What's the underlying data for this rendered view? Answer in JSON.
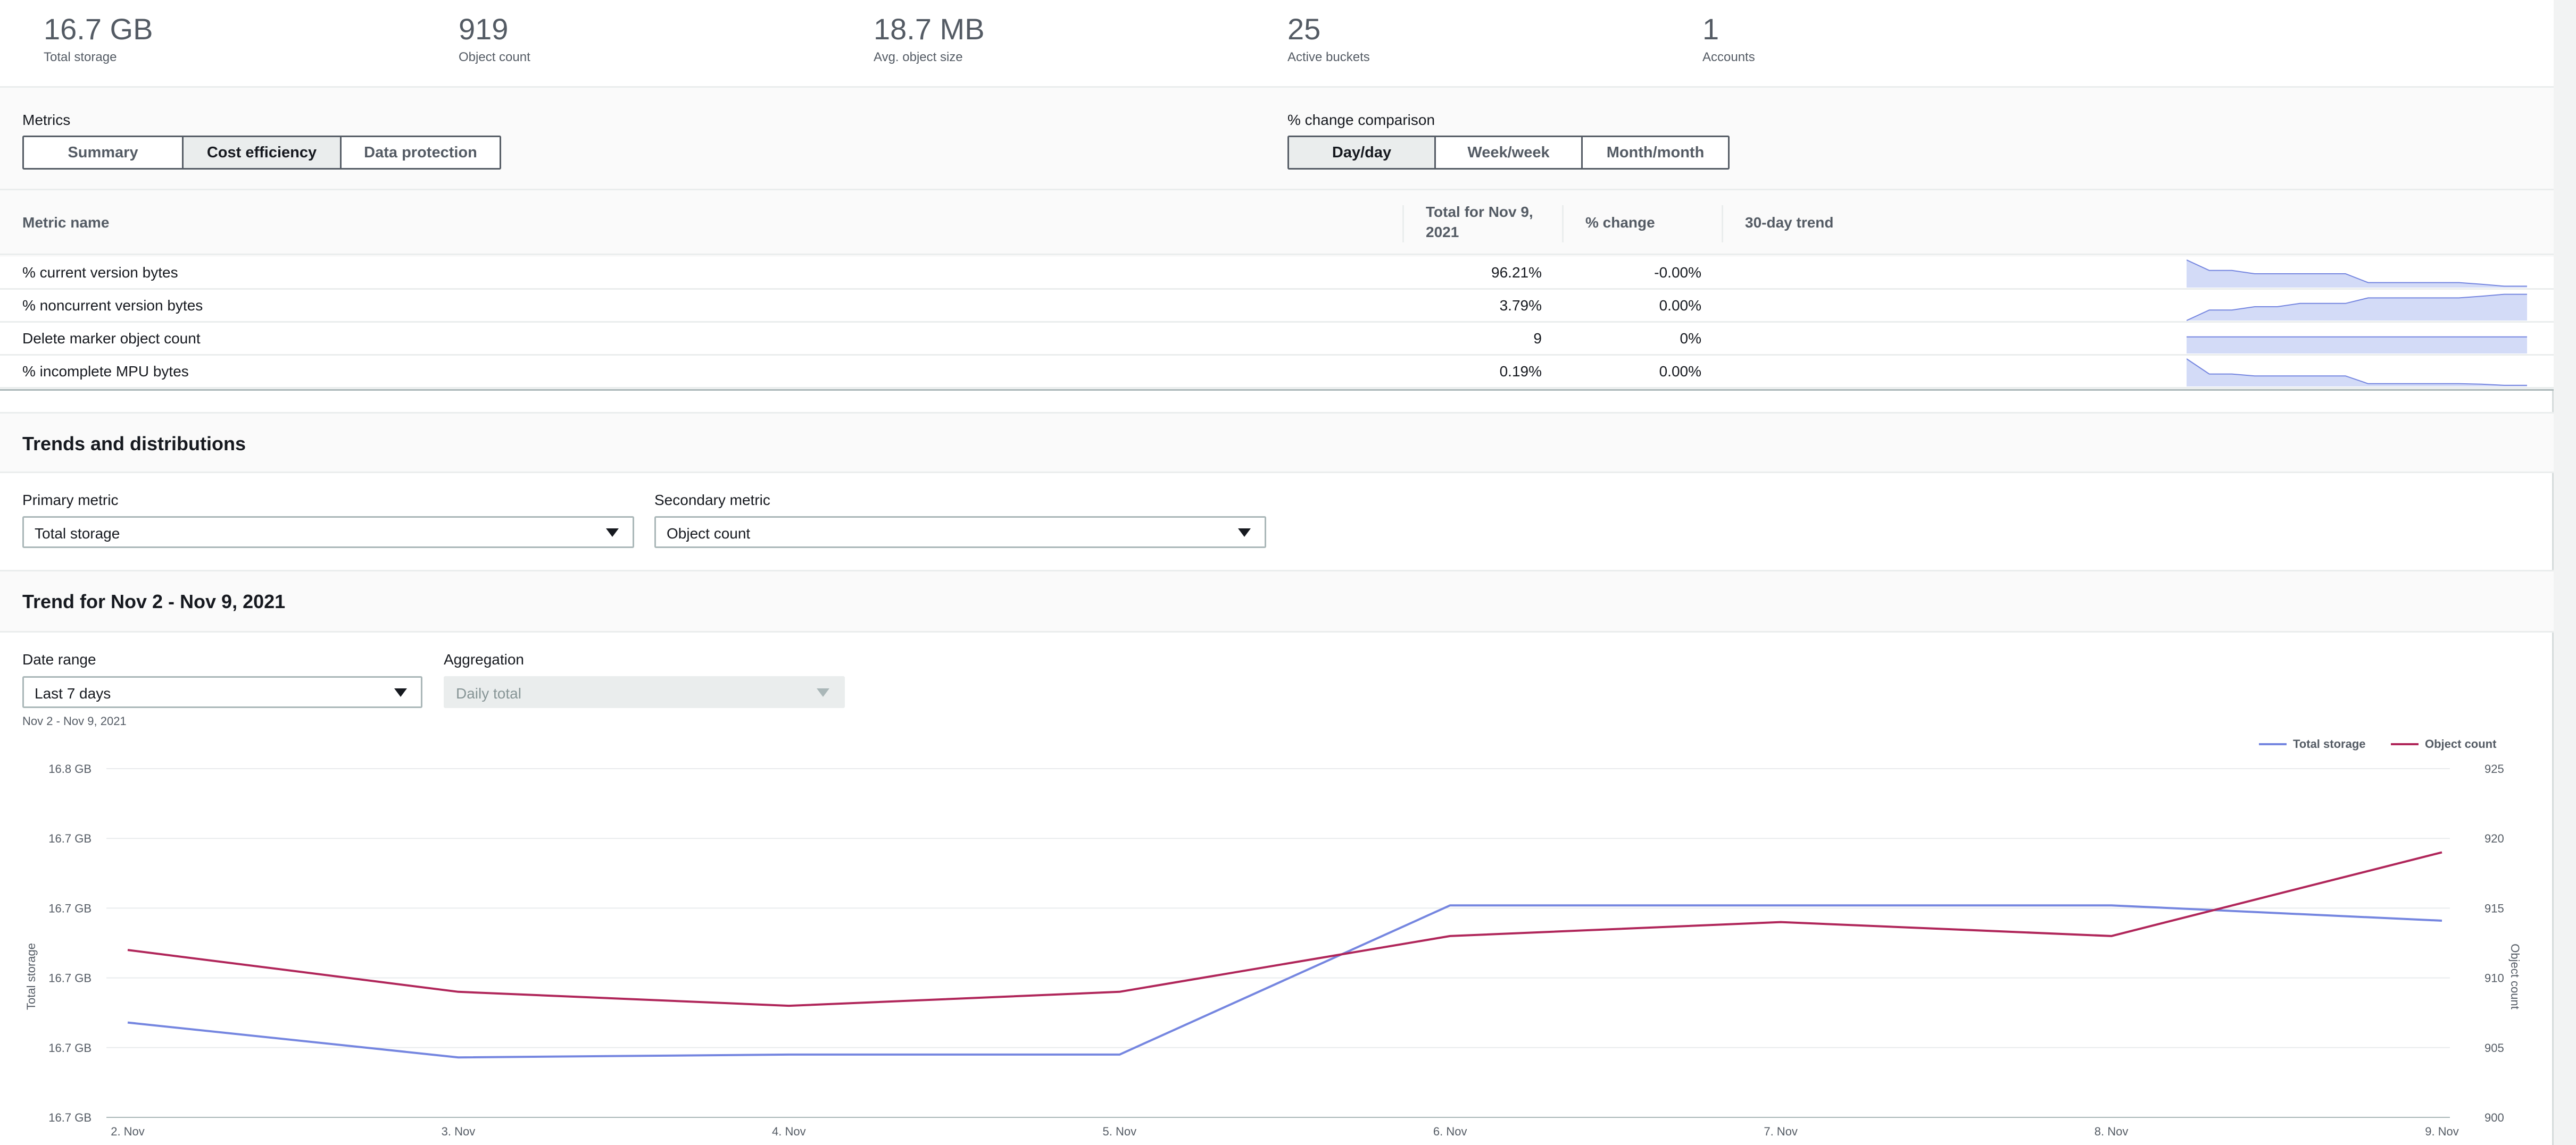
{
  "summary": [
    {
      "value": "16.7 GB",
      "label": "Total storage"
    },
    {
      "value": "919",
      "label": "Object count"
    },
    {
      "value": "18.7 MB",
      "label": "Avg. object size"
    },
    {
      "value": "25",
      "label": "Active buckets"
    },
    {
      "value": "1",
      "label": "Accounts"
    }
  ],
  "metrics": {
    "label": "Metrics",
    "tabs": [
      "Summary",
      "Cost efficiency",
      "Data protection"
    ],
    "active_tab": "Cost efficiency",
    "comparison_label": "% change comparison",
    "comparison_tabs": [
      "Day/day",
      "Week/week",
      "Month/month"
    ],
    "active_comparison": "Day/day",
    "columns": {
      "name": "Metric name",
      "total": "Total for Nov 9, 2021",
      "change": "% change",
      "trend": "30-day trend"
    },
    "rows": [
      {
        "name": "% current version bytes",
        "total": "96.21%",
        "change": "-0.00%",
        "trend": [
          1.0,
          0.62,
          0.62,
          0.5,
          0.5,
          0.5,
          0.5,
          0.5,
          0.18,
          0.18,
          0.18,
          0.18,
          0.18,
          0.12,
          0.05,
          0.05
        ]
      },
      {
        "name": "% noncurrent version bytes",
        "total": "3.79%",
        "change": "0.00%",
        "trend": [
          0.0,
          0.38,
          0.38,
          0.5,
          0.5,
          0.62,
          0.62,
          0.62,
          0.82,
          0.82,
          0.82,
          0.82,
          0.82,
          0.88,
          0.95,
          0.95
        ]
      },
      {
        "name": "Delete marker object count",
        "total": "9",
        "change": "0%",
        "trend": [
          0.6,
          0.6,
          0.6,
          0.6,
          0.6,
          0.6,
          0.6,
          0.6,
          0.6,
          0.6,
          0.6,
          0.6,
          0.6,
          0.6,
          0.6,
          0.6
        ]
      },
      {
        "name": "% incomplete MPU bytes",
        "total": "0.19%",
        "change": "0.00%",
        "trend": [
          1.0,
          0.45,
          0.45,
          0.38,
          0.38,
          0.38,
          0.38,
          0.38,
          0.1,
          0.1,
          0.1,
          0.1,
          0.1,
          0.08,
          0.04,
          0.04
        ]
      }
    ]
  },
  "trends": {
    "title": "Trends and distributions",
    "primary_label": "Primary metric",
    "primary_value": "Total storage",
    "secondary_label": "Secondary metric",
    "secondary_value": "Object count"
  },
  "trend": {
    "title": "Trend for Nov 2 - Nov 9, 2021",
    "date_range_label": "Date range",
    "date_range_value": "Last 7 days",
    "date_range_hint": "Nov 2 - Nov 9, 2021",
    "aggregation_label": "Aggregation",
    "aggregation_value": "Daily total"
  },
  "colors": {
    "total_storage": "#7586e0",
    "object_count": "#b0265a"
  },
  "chart_data": {
    "type": "line",
    "x": [
      "2. Nov",
      "3. Nov",
      "4. Nov",
      "5. Nov",
      "6. Nov",
      "7. Nov",
      "8. Nov",
      "9. Nov"
    ],
    "y_left_label": "Total storage",
    "y_right_label": "Object count",
    "y_left_ticks": [
      "16.8 GB",
      "16.7 GB",
      "16.7 GB",
      "16.7 GB",
      "16.7 GB",
      "16.7 GB"
    ],
    "y_right_ticks": [
      "925",
      "920",
      "915",
      "910",
      "905",
      "900"
    ],
    "y_right_range": [
      900,
      925
    ],
    "series": [
      {
        "name": "Total storage",
        "axis": "left",
        "values": [
          906.8,
          904.3,
          904.5,
          904.5,
          915.2,
          915.2,
          915.2,
          914.1
        ]
      },
      {
        "name": "Object count",
        "axis": "right",
        "values": [
          912,
          909,
          908,
          909,
          913,
          914,
          913,
          919
        ]
      }
    ],
    "legend_position": "top-right",
    "grid": true
  }
}
